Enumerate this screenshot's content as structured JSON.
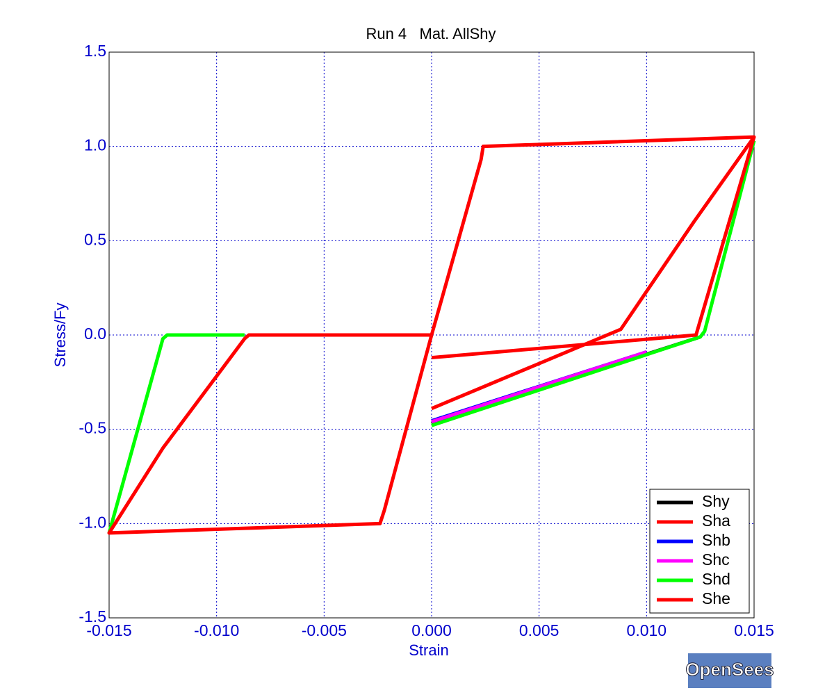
{
  "chart_data": {
    "type": "line",
    "title": "Run 4   Mat. AllShy",
    "x_label": "Strain",
    "y_label": "Stress/Fy",
    "xlim": [
      -0.015,
      0.015
    ],
    "ylim": [
      -1.5,
      1.5
    ],
    "xticks": [
      -0.015,
      {
        "value": -0.01,
        "label": "-0.010"
      },
      -0.005,
      {
        "value": 0,
        "label": "0.000"
      },
      0.005,
      {
        "value": 0.01,
        "label": "0.010"
      },
      0.015
    ],
    "yticks": [
      -1.5,
      {
        "value": -1,
        "label": "-1.0"
      },
      -0.5,
      {
        "value": 0,
        "label": "0.0"
      },
      0.5,
      {
        "value": 1,
        "label": "1.0"
      },
      1.5
    ],
    "grid": true,
    "legend": "lower-right",
    "series": [
      {
        "name": "Shy",
        "color": "#000000",
        "x": [
          0,
          0.0125
        ],
        "values": [
          -0.47,
          -0.01
        ]
      },
      {
        "name": "Sha",
        "color": "#ff0000",
        "x": [
          0,
          0.0023,
          0.0024,
          0.015,
          0.0122,
          0.0088,
          0
        ],
        "values": [
          0,
          0.93,
          1.0,
          1.05,
          0.6,
          0.03,
          -0.39
        ]
      },
      {
        "name": "Shb",
        "color": "#0000ff",
        "x": [
          0,
          0.01
        ],
        "values": [
          -0.455,
          -0.09
        ]
      },
      {
        "name": "Shc",
        "color": "#ff00ff",
        "x": [
          0,
          0.01
        ],
        "values": [
          -0.46,
          -0.09
        ]
      },
      {
        "name": "Shd",
        "color": "#00ff00",
        "x": [
          -0.0087,
          -0.0123,
          -0.0125,
          -0.015,
          0,
          0,
          0.0125,
          0.0127,
          0.015
        ],
        "values": [
          0,
          0,
          -0.02,
          -1.05,
          null,
          -0.48,
          -0.01,
          0.02,
          1.03
        ]
      },
      {
        "name": "She",
        "color": "#ff0000",
        "x": [
          0,
          0.0123,
          0.015,
          0.015,
          0,
          -0.0085,
          -0.0087,
          -0.0125,
          -0.015,
          -0.0024,
          -0.0022,
          0
        ],
        "values": [
          -0.12,
          0,
          1.05,
          null,
          0,
          0,
          -0.02,
          -0.6,
          -1.05,
          -1.0,
          -0.93,
          0
        ]
      }
    ]
  },
  "logo": "OpenSees"
}
